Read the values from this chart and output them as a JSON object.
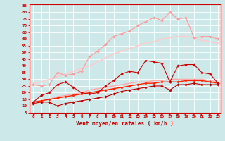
{
  "xlabel": "Vent moyen/en rafales ( km/h )",
  "bg_color": "#cce8e8",
  "grid_color": "#ffffff",
  "xmin": -0.5,
  "xmax": 23.3,
  "ymin": 5,
  "ymax": 85,
  "yticks": [
    5,
    10,
    15,
    20,
    25,
    30,
    35,
    40,
    45,
    50,
    55,
    60,
    65,
    70,
    75,
    80,
    85
  ],
  "xticks": [
    0,
    1,
    2,
    3,
    4,
    5,
    6,
    7,
    8,
    9,
    10,
    11,
    12,
    13,
    14,
    15,
    16,
    17,
    18,
    19,
    20,
    21,
    22,
    23
  ],
  "series": [
    {
      "x": [
        0,
        1,
        2,
        3,
        4,
        5,
        6,
        7,
        8,
        9,
        10,
        11,
        12,
        13,
        14,
        15,
        16,
        17,
        18,
        19,
        20,
        21,
        22,
        23
      ],
      "y": [
        13,
        18,
        20,
        26,
        28,
        24,
        20,
        19,
        20,
        25,
        29,
        34,
        36,
        35,
        44,
        43,
        42,
        28,
        40,
        41,
        41,
        35,
        34,
        27
      ],
      "color": "#cc0000",
      "marker": "D",
      "markersize": 1.8,
      "linewidth": 0.8,
      "zorder": 5
    },
    {
      "x": [
        0,
        1,
        2,
        3,
        4,
        5,
        6,
        7,
        8,
        9,
        10,
        11,
        12,
        13,
        14,
        15,
        16,
        17,
        18,
        19,
        20,
        21,
        22,
        23
      ],
      "y": [
        13,
        14,
        15,
        16,
        17,
        18,
        19,
        20,
        21,
        22,
        23,
        24,
        25,
        26,
        27,
        27,
        28,
        28,
        28,
        29,
        29,
        29,
        28,
        27
      ],
      "color": "#ff2200",
      "marker": "D",
      "markersize": 1.8,
      "linewidth": 1.0,
      "zorder": 4
    },
    {
      "x": [
        0,
        1,
        2,
        3,
        4,
        5,
        6,
        7,
        8,
        9,
        10,
        11,
        12,
        13,
        14,
        15,
        16,
        17,
        18,
        19,
        20,
        21,
        22,
        23
      ],
      "y": [
        12,
        13,
        13,
        10,
        12,
        13,
        14,
        15,
        16,
        17,
        19,
        21,
        22,
        23,
        24,
        25,
        25,
        22,
        26,
        26,
        27,
        26,
        26,
        26
      ],
      "color": "#bb0000",
      "marker": "D",
      "markersize": 1.8,
      "linewidth": 0.8,
      "zorder": 4
    },
    {
      "x": [
        0,
        1,
        2,
        3,
        4,
        5,
        6,
        7,
        8,
        9,
        10,
        11,
        12,
        13,
        14,
        15,
        16,
        17,
        18,
        19,
        20,
        21,
        22,
        23
      ],
      "y": [
        26,
        25,
        26,
        35,
        33,
        34,
        36,
        47,
        51,
        56,
        62,
        64,
        66,
        70,
        73,
        76,
        74,
        80,
        75,
        76,
        61,
        62,
        62,
        60
      ],
      "color": "#ff9999",
      "marker": "D",
      "markersize": 1.8,
      "linewidth": 0.8,
      "zorder": 3
    },
    {
      "x": [
        0,
        1,
        2,
        3,
        4,
        5,
        6,
        7,
        8,
        9,
        10,
        11,
        12,
        13,
        14,
        15,
        16,
        17,
        18,
        19,
        20,
        21,
        22,
        23
      ],
      "y": [
        27,
        28,
        30,
        32,
        34,
        36,
        38,
        40,
        43,
        46,
        49,
        51,
        53,
        55,
        57,
        58,
        60,
        61,
        62,
        62,
        61,
        59,
        58,
        57
      ],
      "color": "#ffcccc",
      "marker": null,
      "markersize": 0,
      "linewidth": 1.2,
      "zorder": 2
    },
    {
      "x": [
        0,
        1,
        2,
        3,
        4,
        5,
        6,
        7,
        8,
        9,
        10,
        11,
        12,
        13,
        14,
        15,
        16,
        17,
        18,
        19,
        20,
        21,
        22,
        23
      ],
      "y": [
        13,
        14,
        15,
        17,
        18,
        19,
        20,
        22,
        23,
        24,
        25,
        26,
        27,
        28,
        28,
        29,
        29,
        30,
        30,
        30,
        30,
        30,
        29,
        28
      ],
      "color": "#ffaaaa",
      "marker": null,
      "markersize": 0,
      "linewidth": 1.0,
      "zorder": 2
    }
  ]
}
